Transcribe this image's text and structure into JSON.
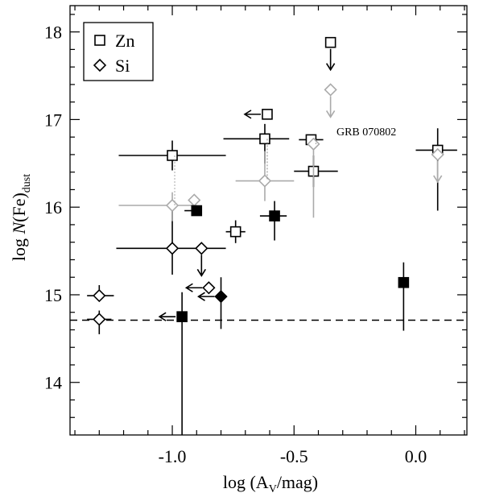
{
  "chart_data": {
    "type": "scatter",
    "xlabel": "log (A_V/mag)",
    "ylabel": "log N(Fe)_dust",
    "xlim": [
      -1.42,
      0.21
    ],
    "ylim": [
      13.4,
      18.3
    ],
    "xticks": [
      -1.0,
      -0.5,
      0.0
    ],
    "xtick_labels": [
      "-1.0",
      "-0.5",
      "0.0"
    ],
    "yticks": [
      14,
      15,
      16,
      17,
      18
    ],
    "ytick_labels": [
      "14",
      "15",
      "16",
      "17",
      "18"
    ],
    "legend": {
      "position": "top-left",
      "entries": [
        {
          "marker": "open-square",
          "label": "Zn"
        },
        {
          "marker": "open-diamond",
          "label": "Si"
        }
      ]
    },
    "reference_line": {
      "y": 14.71,
      "style": "dashed"
    },
    "annotations": [
      {
        "text": "GRB 070802",
        "x": -0.08,
        "y": 16.82
      }
    ],
    "series": [
      {
        "marker": "open-square",
        "color": "#000000",
        "points": [
          {
            "x": -1.0,
            "y": 16.59,
            "xerr": [
              0.22,
              0.22
            ],
            "yerr": [
              0.17,
              0.17
            ]
          },
          {
            "x": -0.74,
            "y": 15.72,
            "xerr": [
              0.04,
              0.04
            ],
            "yerr": [
              0.13,
              0.13
            ]
          },
          {
            "x": -0.62,
            "y": 16.78,
            "xerr": [
              0.17,
              0.1
            ],
            "yerr": [
              0.28,
              0.17
            ]
          },
          {
            "x": -0.61,
            "y": 17.06,
            "upper_limit": true,
            "arrow": "left"
          },
          {
            "x": -0.43,
            "y": 16.77,
            "xerr": [
              0.05,
              0.05
            ],
            "yerr": [
              0.0,
              0.0
            ]
          },
          {
            "x": -0.42,
            "y": 16.41,
            "xerr": [
              0.08,
              0.1
            ],
            "yerr": [
              0.18,
              0.18
            ]
          },
          {
            "x": -0.35,
            "y": 17.88,
            "upper_limit": true,
            "arrow": "down"
          },
          {
            "x": 0.09,
            "y": 16.65,
            "xerr": [
              0.09,
              0.08
            ],
            "yerr": [
              0.69,
              0.25
            ]
          }
        ]
      },
      {
        "marker": "open-diamond",
        "color": "#000000",
        "points": [
          {
            "x": -1.3,
            "y": 14.99,
            "xerr": [
              0.05,
              0.06
            ],
            "yerr": [
              0.0,
              0.12
            ]
          },
          {
            "x": -1.3,
            "y": 14.72,
            "xerr": [
              0.05,
              0.05
            ],
            "yerr": [
              0.17,
              0.1
            ]
          },
          {
            "x": -1.0,
            "y": 15.53,
            "xerr": [
              0.23,
              0.22
            ],
            "yerr": [
              0.3,
              0.5
            ]
          },
          {
            "x": -0.88,
            "y": 15.53,
            "upper_limit": true,
            "arrow": "down"
          },
          {
            "x": -0.85,
            "y": 15.08,
            "upper_limit": true,
            "arrow": "left"
          }
        ]
      },
      {
        "marker": "open-diamond",
        "color": "#aaaaaa",
        "points": [
          {
            "x": -1.0,
            "y": 16.02,
            "xerr": [
              0.22,
              0.1
            ],
            "yerr": [
              0.18,
              0.15
            ]
          },
          {
            "x": -0.91,
            "y": 16.08,
            "xerr": [
              0.0,
              0.0
            ],
            "yerr": [
              0.06,
              0.0
            ]
          },
          {
            "x": -0.62,
            "y": 16.3,
            "xerr": [
              0.12,
              0.12
            ],
            "yerr": [
              0.23,
              0.34
            ]
          },
          {
            "x": -0.42,
            "y": 16.72,
            "xerr": [
              0.0,
              0.0
            ],
            "yerr": [
              0.84,
              0.0
            ]
          },
          {
            "x": -0.35,
            "y": 17.34,
            "upper_limit": true,
            "arrow": "down"
          },
          {
            "x": 0.09,
            "y": 16.6,
            "upper_limit": true,
            "arrow": "down"
          }
        ]
      },
      {
        "marker": "filled-square",
        "color": "#000000",
        "points": [
          {
            "x": -0.96,
            "y": 14.75,
            "upper_limit": true,
            "arrow": "left",
            "yerr": [
              1.35,
              0.28
            ]
          },
          {
            "x": -0.9,
            "y": 15.96,
            "xerr": [
              0.05,
              0.0
            ],
            "yerr": [
              0.0,
              0.0
            ]
          },
          {
            "x": -0.58,
            "y": 15.9,
            "xerr": [
              0.06,
              0.05
            ],
            "yerr": [
              0.28,
              0.17
            ]
          },
          {
            "x": -0.05,
            "y": 15.14,
            "xerr": [
              0.0,
              0.0
            ],
            "yerr": [
              0.55,
              0.23
            ]
          }
        ]
      },
      {
        "marker": "filled-diamond",
        "color": "#000000",
        "points": [
          {
            "x": -0.8,
            "y": 14.98,
            "arrow": "left",
            "yerr": [
              0.37,
              0.22
            ]
          }
        ]
      }
    ]
  }
}
